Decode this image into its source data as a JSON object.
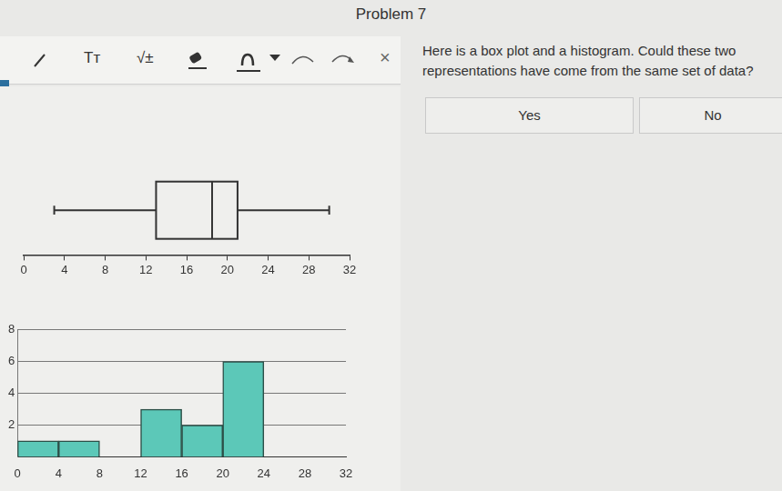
{
  "header": {
    "title": "Problem 7"
  },
  "toolbar": [
    "Tт",
    "√±",
    "×"
  ],
  "question": "Here is a box plot and a histogram. Could these two representations have come from the same set of data?",
  "answers": [
    "Yes",
    "No"
  ],
  "chart_data": [
    {
      "type": "box",
      "min": 3,
      "q1": 13,
      "median": 18.5,
      "q3": 21,
      "max": 30,
      "xlim": [
        0,
        32
      ],
      "xticks": [
        0,
        4,
        8,
        12,
        16,
        20,
        24,
        28,
        32
      ],
      "tick_labels": "x"
    },
    {
      "type": "histogram",
      "bins": [
        0,
        4,
        8,
        12,
        16,
        20,
        24,
        28,
        32
      ],
      "values": [
        1,
        1,
        0,
        3,
        2,
        6,
        0,
        0
      ],
      "color": "#5cc8b8",
      "xlim": [
        0,
        32
      ],
      "xticks": [
        0,
        4,
        8,
        12,
        16,
        20,
        24,
        28,
        32
      ],
      "ylim": [
        0,
        8
      ],
      "yticks": [
        2,
        4,
        6,
        8
      ],
      "grid": true
    }
  ]
}
